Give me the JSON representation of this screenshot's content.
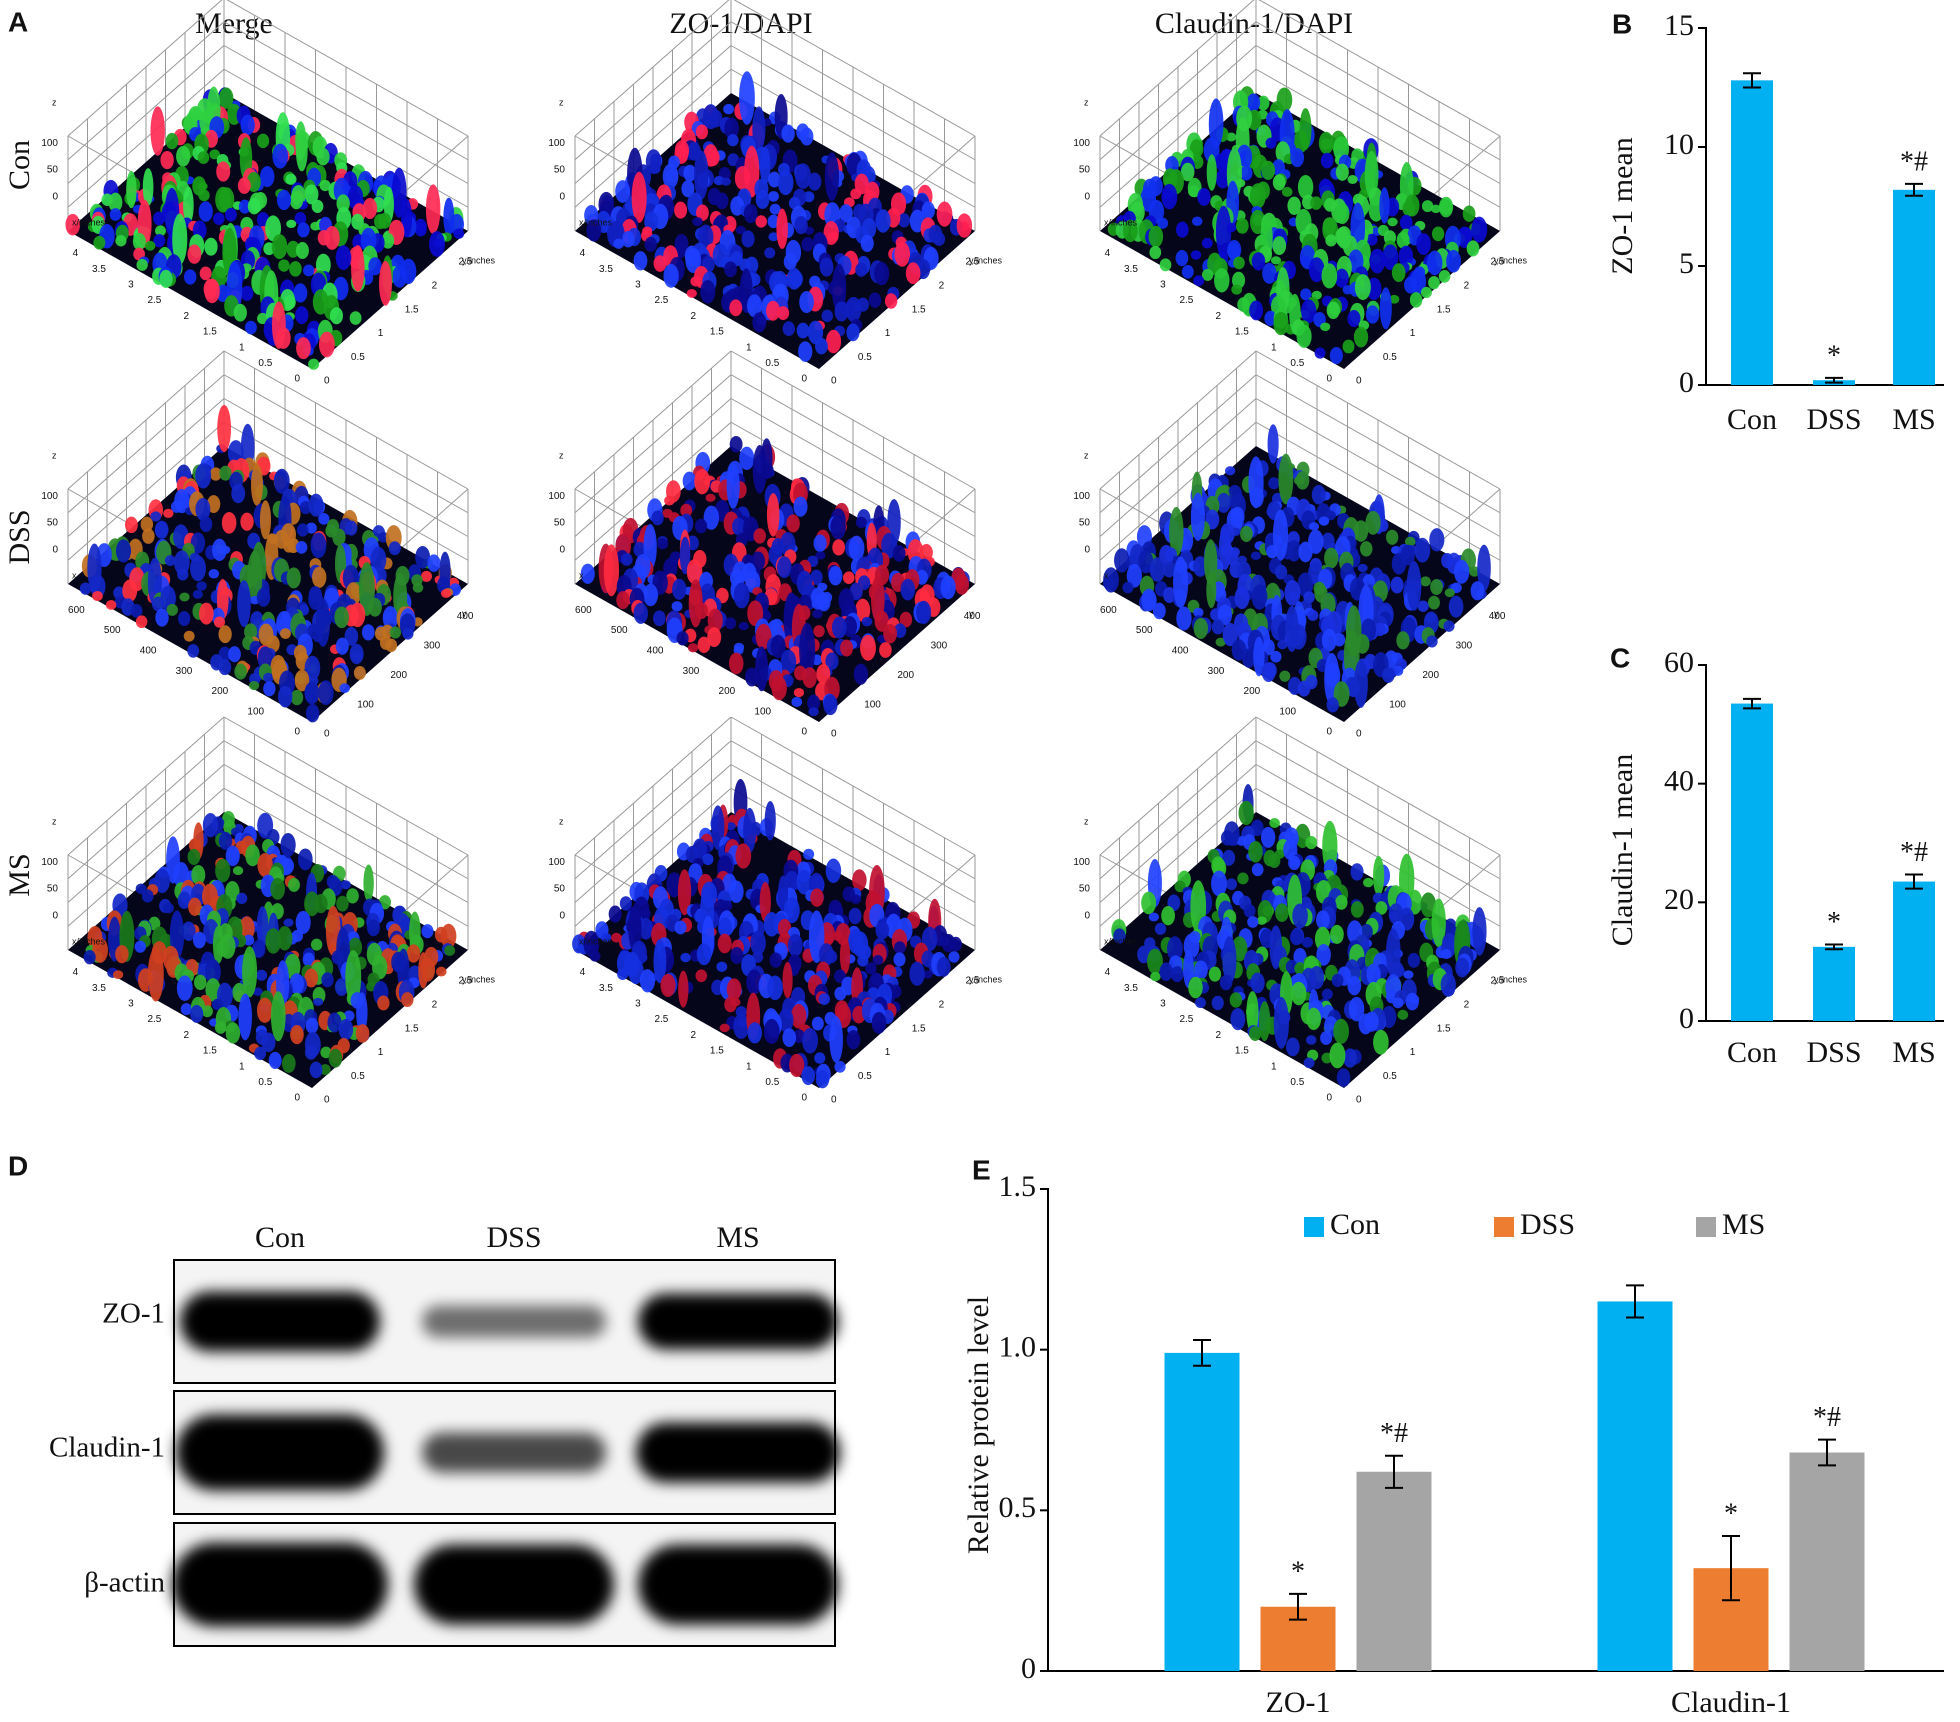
{
  "panel_a": {
    "label": "A",
    "columns": [
      "Merge",
      "ZO-1/DAPI",
      "Claudin-1/DAPI"
    ],
    "rows": [
      {
        "name": "Con",
        "x_label": "x/inches",
        "y_label": "y/inches",
        "z_label": "z",
        "xlim": [
          0,
          4.4
        ],
        "xticks": [
          0,
          0.5,
          1,
          1.5,
          2,
          2.5,
          3,
          3.5,
          4
        ],
        "ylim": [
          0,
          2.9
        ],
        "yticks": [
          0,
          0.5,
          1,
          1.5,
          2,
          2.5
        ],
        "zlim": [
          0,
          130
        ],
        "zticks": [
          0,
          50,
          100
        ]
      },
      {
        "name": "DSS",
        "x_label": "x",
        "y_label": "y",
        "z_label": "z",
        "xlim": [
          0,
          680
        ],
        "xticks": [
          0,
          100,
          200,
          300,
          400,
          500,
          600
        ],
        "ylim": [
          0,
          470
        ],
        "yticks": [
          0,
          100,
          200,
          300,
          400
        ],
        "zlim": [
          0,
          130
        ],
        "zticks": [
          0,
          50,
          100
        ]
      },
      {
        "name": "MS",
        "x_label": "x/inches",
        "y_label": "y/inches",
        "z_label": "z",
        "xlim": [
          0,
          4.4
        ],
        "xticks": [
          0,
          0.5,
          1,
          1.5,
          2,
          2.5,
          3,
          3.5,
          4
        ],
        "ylim": [
          0,
          2.9
        ],
        "yticks": [
          0,
          0.5,
          1,
          1.5,
          2,
          2.5
        ],
        "zlim": [
          0,
          130
        ],
        "zticks": [
          0,
          50,
          100
        ]
      }
    ]
  },
  "panel_d": {
    "label": "D",
    "lanes": [
      "Con",
      "DSS",
      "MS"
    ],
    "proteins": [
      "ZO-1",
      "Claudin-1",
      "β-actin"
    ]
  },
  "chart_data": [
    {
      "label": "B",
      "type": "bar",
      "ylabel": "ZO-1 mean",
      "categories": [
        "Con",
        "DSS",
        "MS"
      ],
      "values": [
        12.8,
        0.2,
        8.2
      ],
      "errors": [
        0.3,
        0.1,
        0.25
      ],
      "value_annotations": [
        null,
        "*",
        "*#"
      ],
      "color": "#00b0f0",
      "ylim": [
        0,
        15
      ],
      "yticks": [
        0,
        5,
        10,
        15
      ]
    },
    {
      "label": "C",
      "type": "bar",
      "ylabel": "Claudin-1 mean",
      "categories": [
        "Con",
        "DSS",
        "MS"
      ],
      "values": [
        53.5,
        12.5,
        23.5
      ],
      "errors": [
        0.8,
        0.4,
        1.2
      ],
      "value_annotations": [
        null,
        "*",
        "*#"
      ],
      "color": "#00b0f0",
      "ylim": [
        0,
        60
      ],
      "yticks": [
        0,
        20,
        40,
        60
      ]
    },
    {
      "label": "E",
      "type": "bar",
      "ylabel": "Relative protein level",
      "categories": [
        "ZO-1",
        "Claudin-1"
      ],
      "legend": "top",
      "series": [
        {
          "name": "Con",
          "color": "#00b0f0",
          "values": [
            0.99,
            1.15
          ],
          "errors": [
            0.04,
            0.05
          ],
          "annotations": [
            null,
            null
          ]
        },
        {
          "name": "DSS",
          "color": "#ed7d31",
          "values": [
            0.2,
            0.32
          ],
          "errors": [
            0.04,
            0.1
          ],
          "annotations": [
            "*",
            "*"
          ]
        },
        {
          "name": "MS",
          "color": "#a5a5a5",
          "values": [
            0.62,
            0.68
          ],
          "errors": [
            0.05,
            0.04
          ],
          "annotations": [
            "*#",
            "*#"
          ]
        }
      ],
      "ylim": [
        0,
        1.5
      ],
      "yticks": [
        0,
        0.5,
        {
          "value": 1,
          "label": "1.0"
        },
        1.5
      ]
    }
  ]
}
